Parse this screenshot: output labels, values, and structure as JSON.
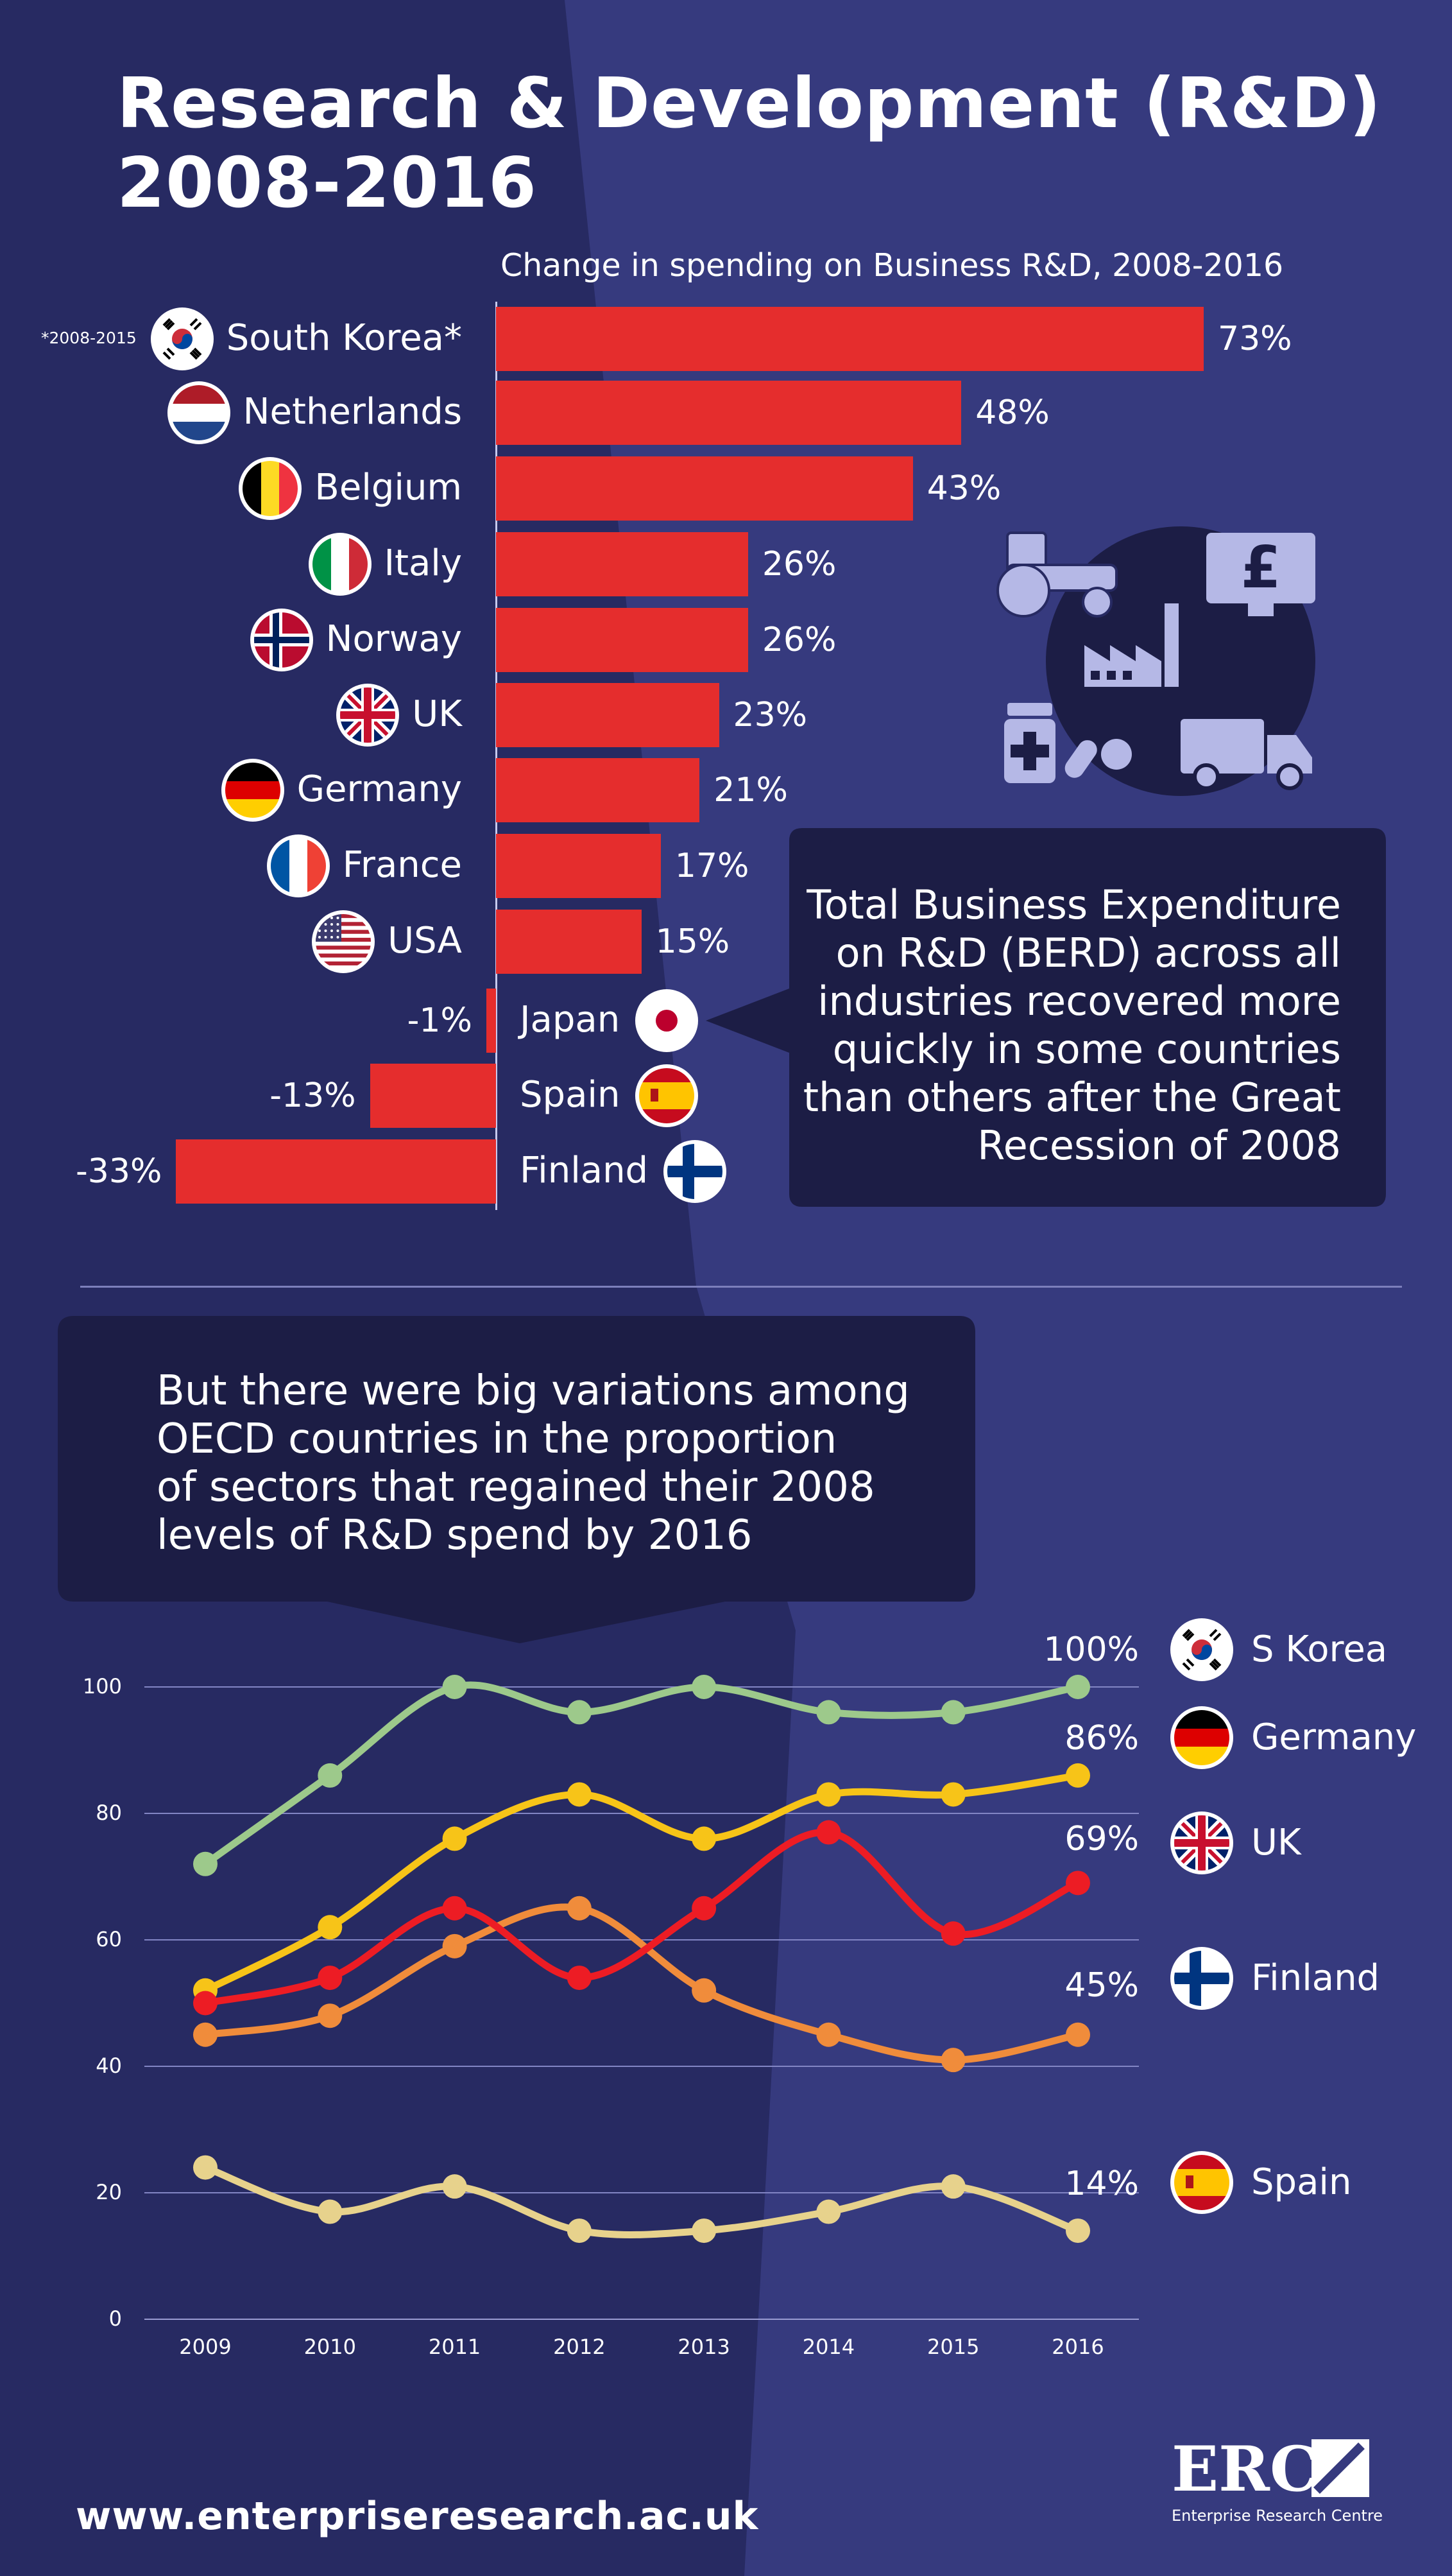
{
  "header": {
    "title_line1": "Research & Development (R&D)",
    "title_line2": "2008-2016"
  },
  "bar_section": {
    "subtitle": "Change in spending on Business R&D, 2008-2016",
    "footnote": "*2008-2015",
    "callout": [
      "Total Business Expenditure",
      "on R&D (BERD) across all",
      "industries recovered more",
      "quickly in some countries",
      "than others after the Great",
      "Recession of 2008"
    ]
  },
  "line_section": {
    "callout": [
      "But there were big variations among",
      "OECD countries in the proportion",
      "of sectors that regained their 2008",
      "levels of R&D spend by 2016"
    ]
  },
  "chart_data": [
    {
      "type": "bar",
      "orientation": "horizontal",
      "title": "Change in spending on Business R&D, 2008-2016",
      "categories": [
        "South Korea*",
        "Netherlands",
        "Belgium",
        "Italy",
        "Norway",
        "UK",
        "Germany",
        "France",
        "USA",
        "Japan",
        "Spain",
        "Finland"
      ],
      "values": [
        73,
        48,
        43,
        26,
        26,
        23,
        21,
        17,
        15,
        -1,
        -13,
        -33
      ],
      "value_labels": [
        "73%",
        "48%",
        "43%",
        "26%",
        "26%",
        "23%",
        "21%",
        "17%",
        "15%",
        "-1%",
        "-13%",
        "-33%"
      ],
      "color": "#e52d2d",
      "flags": [
        "south-korea-flag-icon",
        "netherlands-flag-icon",
        "belgium-flag-icon",
        "italy-flag-icon",
        "norway-flag-icon",
        "uk-flag-icon",
        "germany-flag-icon",
        "france-flag-icon",
        "usa-flag-icon",
        "japan-flag-icon",
        "spain-flag-icon",
        "finland-flag-icon"
      ]
    },
    {
      "type": "line",
      "x": [
        2009,
        2010,
        2011,
        2012,
        2013,
        2014,
        2015,
        2016
      ],
      "ylim": [
        0,
        100
      ],
      "yticks": [
        0,
        20,
        40,
        60,
        80,
        100
      ],
      "grid": true,
      "series": [
        {
          "name": "S Korea",
          "end_label": "100%",
          "color": "#9dc98b",
          "values": [
            72,
            86,
            100,
            96,
            100,
            96,
            96,
            100
          ]
        },
        {
          "name": "Germany",
          "end_label": "86%",
          "color": "#f7c418",
          "values": [
            52,
            62,
            76,
            83,
            76,
            83,
            83,
            86
          ]
        },
        {
          "name": "UK",
          "end_label": "69%",
          "color": "#ed1c24",
          "values": [
            50,
            54,
            65,
            54,
            65,
            77,
            61,
            69
          ]
        },
        {
          "name": "Finland",
          "end_label": "45%",
          "color": "#f08c3b",
          "values": [
            45,
            48,
            59,
            65,
            52,
            45,
            41,
            45
          ]
        },
        {
          "name": "Spain",
          "end_label": "14%",
          "color": "#e7d28c",
          "values": [
            24,
            17,
            21,
            14,
            14,
            17,
            21,
            14
          ]
        }
      ]
    }
  ],
  "icons": [
    "tractor-icon",
    "pound-monitor-icon",
    "factory-icon",
    "medicine-icon",
    "truck-icon"
  ],
  "footer": {
    "url": "www.enterpriseresearch.ac.uk",
    "logo_text": "ERC",
    "logo_subtitle": "Enterprise Research Centre"
  },
  "colors": {
    "background_dark": "#272a62",
    "background_light": "#363a7e",
    "bubble": "#1c1d45",
    "bar": "#e52d2d"
  }
}
